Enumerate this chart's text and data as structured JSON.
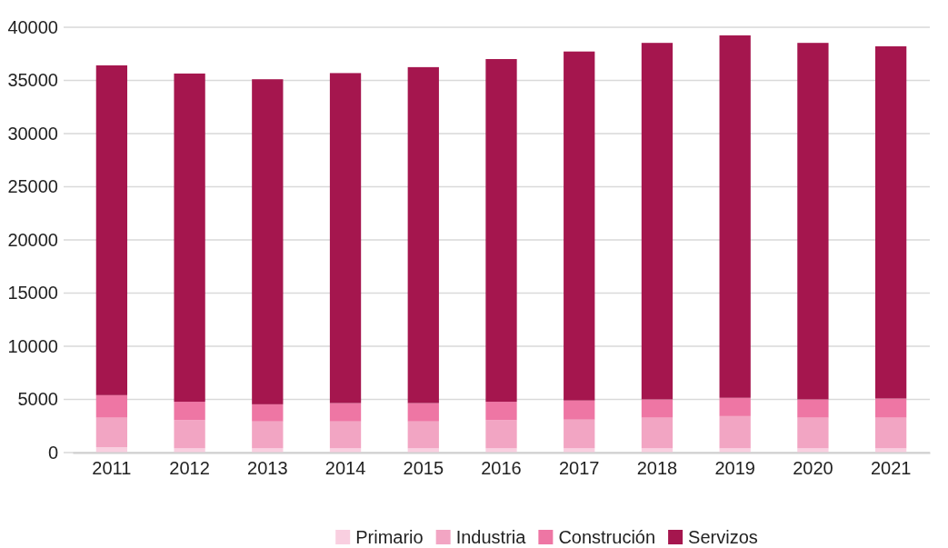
{
  "chart_data": {
    "type": "bar",
    "stacked": true,
    "categories": [
      "2011",
      "2012",
      "2013",
      "2014",
      "2015",
      "2016",
      "2017",
      "2018",
      "2019",
      "2020",
      "2021"
    ],
    "series": [
      {
        "name": "Primario",
        "color": "#f9cfe0",
        "values": [
          500,
          400,
          400,
          400,
          400,
          400,
          400,
          400,
          400,
          400,
          400
        ]
      },
      {
        "name": "Industria",
        "color": "#f2a5c3",
        "values": [
          2780,
          2650,
          2530,
          2530,
          2530,
          2650,
          2700,
          2880,
          3030,
          2880,
          2880
        ]
      },
      {
        "name": "Construción",
        "color": "#ee76a4",
        "values": [
          2120,
          1730,
          1610,
          1720,
          1720,
          1730,
          1800,
          1720,
          1720,
          1720,
          1800
        ]
      },
      {
        "name": "Servizos",
        "color": "#a5164e",
        "values": [
          31020,
          30870,
          30570,
          31040,
          31600,
          32230,
          32820,
          33530,
          34090,
          33530,
          33130
        ]
      }
    ],
    "ylim": [
      0,
      40000
    ],
    "yticks": [
      0,
      5000,
      10000,
      15000,
      20000,
      25000,
      30000,
      35000,
      40000
    ],
    "grid": "y",
    "legend": "bottom"
  }
}
